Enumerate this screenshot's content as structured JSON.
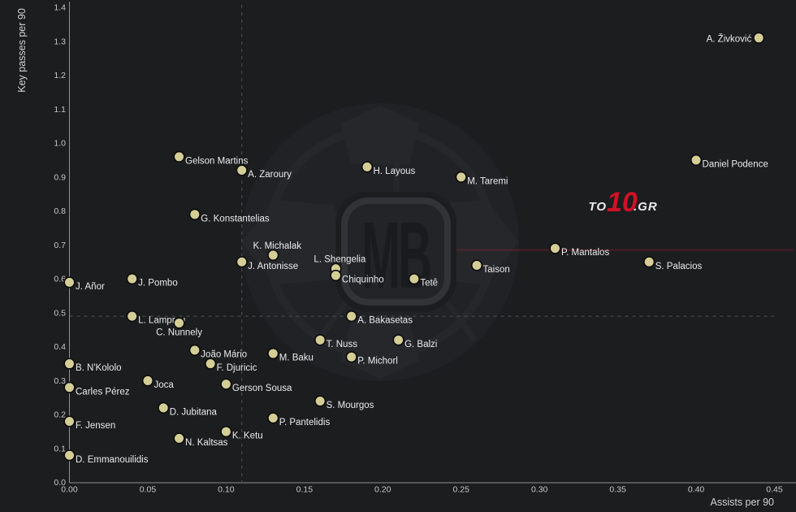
{
  "chart_data": {
    "type": "scatter",
    "title": "",
    "xlabel": "Assists per 90",
    "ylabel": "Key passes per 90",
    "xlim": [
      0.0,
      0.4637
    ],
    "ylim": [
      0.0,
      1.4217
    ],
    "grid": false,
    "legend": "none",
    "xticks": [
      {
        "v": 0.0,
        "t": "0.00"
      },
      {
        "v": 0.05,
        "t": "0.05"
      },
      {
        "v": 0.1,
        "t": "0.10"
      },
      {
        "v": 0.15,
        "t": "0.15"
      },
      {
        "v": 0.2,
        "t": "0.20"
      },
      {
        "v": 0.25,
        "t": "0.25"
      },
      {
        "v": 0.3,
        "t": "0.30"
      },
      {
        "v": 0.35,
        "t": "0.35"
      },
      {
        "v": 0.4,
        "t": "0.40"
      },
      {
        "v": 0.45,
        "t": "0.45"
      }
    ],
    "yticks": [
      {
        "v": 0.0,
        "t": "0.0"
      },
      {
        "v": 0.1,
        "t": "0.1"
      },
      {
        "v": 0.2,
        "t": "0.2"
      },
      {
        "v": 0.3,
        "t": "0.3"
      },
      {
        "v": 0.4,
        "t": "0.4"
      },
      {
        "v": 0.5,
        "t": "0.5"
      },
      {
        "v": 0.6,
        "t": "0.6"
      },
      {
        "v": 0.7,
        "t": "0.7"
      },
      {
        "v": 0.8,
        "t": "0.8"
      },
      {
        "v": 0.9,
        "t": "0.9"
      },
      {
        "v": 1.0,
        "t": "1.0"
      },
      {
        "v": 1.1,
        "t": "1.1"
      },
      {
        "v": 1.2,
        "t": "1.2"
      },
      {
        "v": 1.3,
        "t": "1.3"
      },
      {
        "v": 1.4,
        "t": "1.4"
      }
    ],
    "reference_lines": {
      "vline_dashed_x": 0.11,
      "hline_dashed_y": 0.49,
      "red_line_y": 0.685
    },
    "points": [
      {
        "name": "A. Živković",
        "x": 0.44,
        "y": 1.31,
        "label": "left"
      },
      {
        "name": "Daniel Podence",
        "x": 0.4,
        "y": 0.95,
        "label": "right"
      },
      {
        "name": "Gelson Martins",
        "x": 0.07,
        "y": 0.96,
        "label": "right"
      },
      {
        "name": "A. Zaroury",
        "x": 0.11,
        "y": 0.92,
        "label": "right"
      },
      {
        "name": "H. Layous",
        "x": 0.19,
        "y": 0.93,
        "label": "right"
      },
      {
        "name": "M. Taremi",
        "x": 0.25,
        "y": 0.9,
        "label": "right"
      },
      {
        "name": "G. Konstantelias",
        "x": 0.08,
        "y": 0.79,
        "label": "right"
      },
      {
        "name": "K. Michalak",
        "x": 0.13,
        "y": 0.67,
        "label": "above"
      },
      {
        "name": "J. Antonisse",
        "x": 0.11,
        "y": 0.65,
        "label": "right"
      },
      {
        "name": "L. Shengelia",
        "x": 0.17,
        "y": 0.63,
        "label": "above"
      },
      {
        "name": "Chiquinho",
        "x": 0.17,
        "y": 0.61,
        "label": "right"
      },
      {
        "name": "Tetê",
        "x": 0.22,
        "y": 0.6,
        "label": "right"
      },
      {
        "name": "Taison",
        "x": 0.26,
        "y": 0.64,
        "label": "right"
      },
      {
        "name": "P. Mantalos",
        "x": 0.31,
        "y": 0.69,
        "label": "right"
      },
      {
        "name": "S. Palacios",
        "x": 0.37,
        "y": 0.65,
        "label": "right"
      },
      {
        "name": "J. Añor",
        "x": 0.0,
        "y": 0.59,
        "label": "right"
      },
      {
        "name": "J. Pombo",
        "x": 0.04,
        "y": 0.6,
        "label": "right"
      },
      {
        "name": "L. Lamprou",
        "x": 0.04,
        "y": 0.49,
        "label": "right"
      },
      {
        "name": "C. Nunnely",
        "x": 0.07,
        "y": 0.47,
        "label": "below"
      },
      {
        "name": "João Mário",
        "x": 0.08,
        "y": 0.39,
        "label": "right"
      },
      {
        "name": "F. Djuricic",
        "x": 0.09,
        "y": 0.35,
        "label": "right"
      },
      {
        "name": "M. Baku",
        "x": 0.13,
        "y": 0.38,
        "label": "right"
      },
      {
        "name": "T. Nuss",
        "x": 0.16,
        "y": 0.42,
        "label": "right"
      },
      {
        "name": "A. Bakasetas",
        "x": 0.18,
        "y": 0.49,
        "label": "right"
      },
      {
        "name": "G. Balzi",
        "x": 0.21,
        "y": 0.42,
        "label": "right"
      },
      {
        "name": "P. Michorl",
        "x": 0.18,
        "y": 0.37,
        "label": "right"
      },
      {
        "name": "Joca",
        "x": 0.05,
        "y": 0.3,
        "label": "right"
      },
      {
        "name": "Gerson Sousa",
        "x": 0.1,
        "y": 0.29,
        "label": "right"
      },
      {
        "name": "B. N'Kololo",
        "x": 0.0,
        "y": 0.35,
        "label": "right"
      },
      {
        "name": "Carles Pérez",
        "x": 0.0,
        "y": 0.28,
        "label": "right"
      },
      {
        "name": "S. Mourgos",
        "x": 0.16,
        "y": 0.24,
        "label": "right"
      },
      {
        "name": "D. Jubitana",
        "x": 0.06,
        "y": 0.22,
        "label": "right"
      },
      {
        "name": "P. Pantelidis",
        "x": 0.13,
        "y": 0.19,
        "label": "right"
      },
      {
        "name": "F. Jensen",
        "x": 0.0,
        "y": 0.18,
        "label": "right"
      },
      {
        "name": "K. Ketu",
        "x": 0.1,
        "y": 0.15,
        "label": "right"
      },
      {
        "name": "N. Kaltsas",
        "x": 0.07,
        "y": 0.13,
        "label": "right"
      },
      {
        "name": "D. Emmanouilidis",
        "x": 0.0,
        "y": 0.08,
        "label": "right"
      }
    ]
  },
  "watermarks": {
    "mb_logo_text": "MB",
    "site_logo": {
      "part1": "TO",
      "part2": "10",
      "part3": ".GR"
    }
  },
  "colors": {
    "background": "#1c1d1f",
    "dot_fill": "#d5cd96",
    "dot_stroke": "#0b0b0b",
    "label_text": "#ebebeb",
    "tick_text": "#c6c6c6",
    "axis_title_text": "#d2d2d2",
    "spine": "#909090",
    "dashed_line": "#47484b",
    "red_line": "#7e222b",
    "site_logo_red": "#cf1126",
    "site_logo_white": "#ececec",
    "watermark_ball": "#212226",
    "watermark_patch": "#26272b",
    "watermark_badge_fill": "#232428",
    "watermark_badge_stroke": "#313337",
    "watermark_letters": "#1a1b1e"
  }
}
